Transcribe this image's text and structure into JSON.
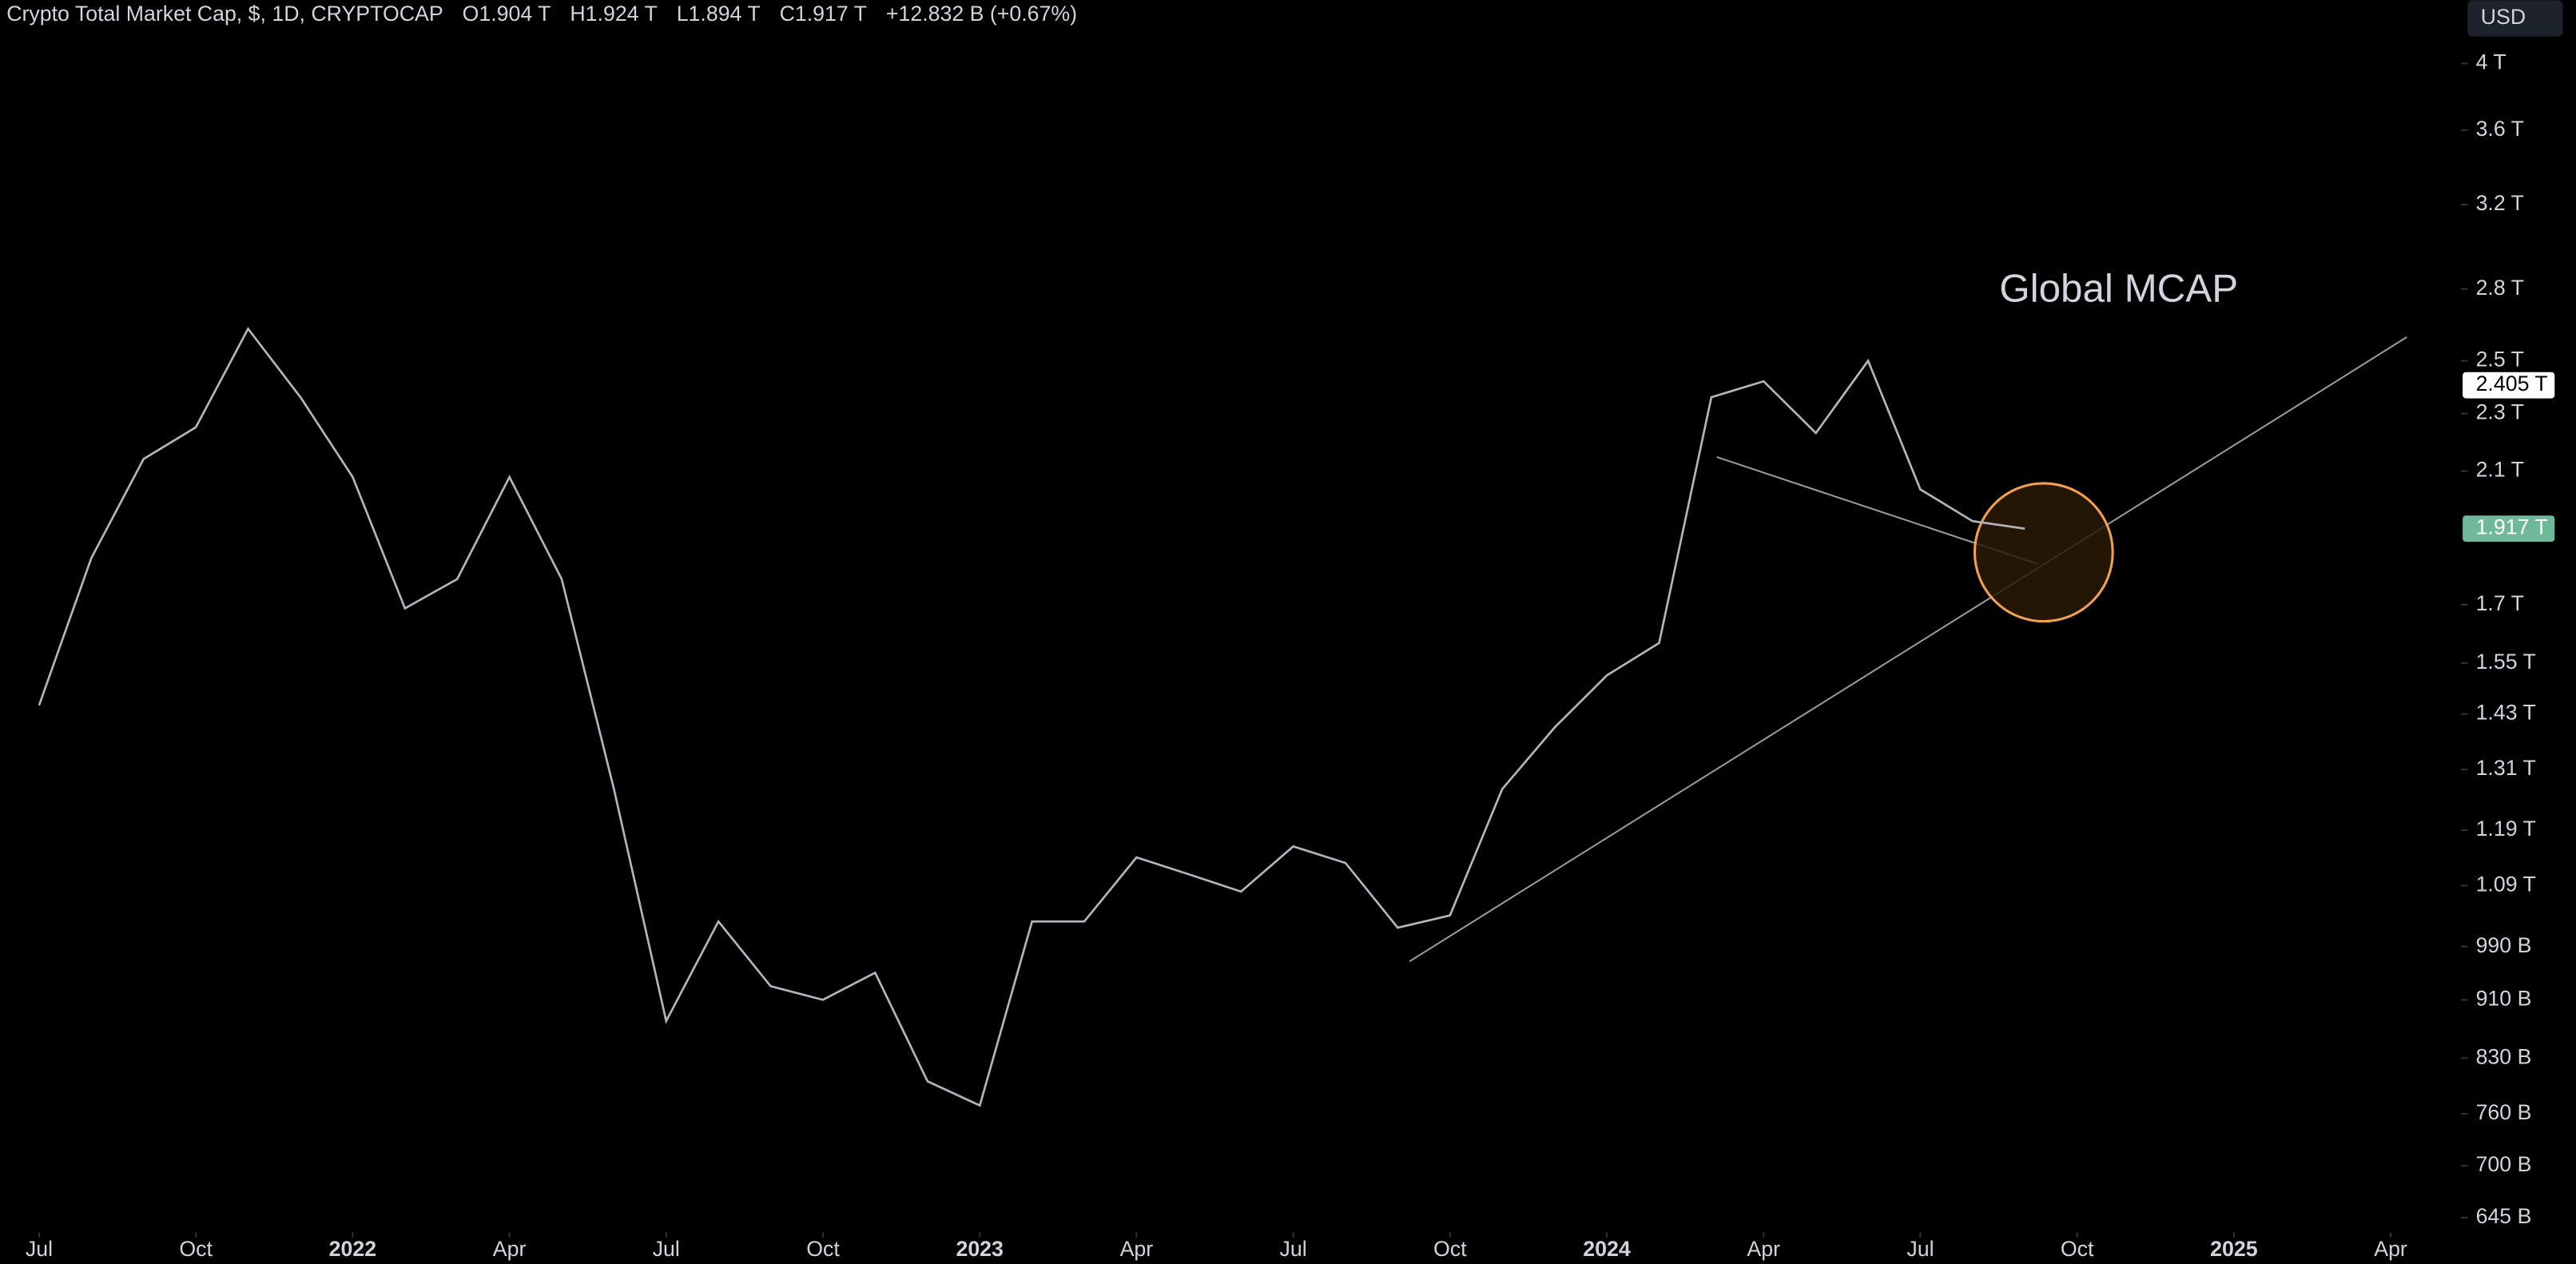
{
  "chart_data": {
    "type": "line",
    "header": {
      "symbol": "Crypto Total Market Cap, $, 1D, CRYPTOCAP",
      "open": "O1.904 T",
      "high": "H1.924 T",
      "low": "L1.894 T",
      "close": "C1.917 T",
      "change": "+12.832 B (+0.67%)"
    },
    "currency": "USD",
    "annotation": "Global MCAP",
    "log_scale": true,
    "grid": false,
    "x": [
      "2021-07",
      "2021-08",
      "2021-09",
      "2021-10",
      "2021-11",
      "2021-12",
      "2022-01",
      "2022-02",
      "2022-03",
      "2022-04",
      "2022-05",
      "2022-06",
      "2022-07",
      "2022-08",
      "2022-09",
      "2022-10",
      "2022-11",
      "2022-12",
      "2023-01",
      "2023-02",
      "2023-03",
      "2023-04",
      "2023-05",
      "2023-06",
      "2023-07",
      "2023-08",
      "2023-09",
      "2023-10",
      "2023-11",
      "2023-12",
      "2024-01",
      "2024-02",
      "2024-03",
      "2024-04",
      "2024-05",
      "2024-06",
      "2024-07",
      "2024-08",
      "2024-09"
    ],
    "series": [
      {
        "color": "#b2b5be",
        "values": [
          1.45,
          1.83,
          2.14,
          2.25,
          2.63,
          2.36,
          2.08,
          1.69,
          1.77,
          2.08,
          1.77,
          1.27,
          0.88,
          1.03,
          0.93,
          0.91,
          0.95,
          0.8,
          0.77,
          1.03,
          1.03,
          1.14,
          1.11,
          1.08,
          1.16,
          1.13,
          1.02,
          1.04,
          1.27,
          1.4,
          1.52,
          1.6,
          2.36,
          2.42,
          2.23,
          2.5,
          2.04,
          1.94,
          1.917
        ]
      }
    ],
    "xlim": [
      "2021-06",
      "2025-05"
    ],
    "xticks": [
      {
        "value": "2021-07",
        "label": "Jul"
      },
      {
        "value": "2021-10",
        "label": "Oct"
      },
      {
        "value": "2022-01",
        "label": "2022"
      },
      {
        "value": "2022-04",
        "label": "Apr"
      },
      {
        "value": "2022-07",
        "label": "Jul"
      },
      {
        "value": "2022-10",
        "label": "Oct"
      },
      {
        "value": "2023-01",
        "label": "2023"
      },
      {
        "value": "2023-04",
        "label": "Apr"
      },
      {
        "value": "2023-07",
        "label": "Jul"
      },
      {
        "value": "2023-10",
        "label": "Oct"
      },
      {
        "value": "2024-01",
        "label": "2024"
      },
      {
        "value": "2024-04",
        "label": "Apr"
      },
      {
        "value": "2024-07",
        "label": "Jul"
      },
      {
        "value": "2024-10",
        "label": "Oct"
      },
      {
        "value": "2025-01",
        "label": "2025"
      },
      {
        "value": "2025-04",
        "label": "Apr"
      }
    ],
    "ylim": [
      0.63,
      4.42
    ],
    "yticks": [
      {
        "value": 4,
        "label": "4 T"
      },
      {
        "value": 3.6,
        "label": "3.6 T"
      },
      {
        "value": 3.2,
        "label": "3.2 T"
      },
      {
        "value": 2.8,
        "label": "2.8 T"
      },
      {
        "value": 2.5,
        "label": "2.5 T"
      },
      {
        "value": 2.3,
        "label": "2.3 T"
      },
      {
        "value": 2.1,
        "label": "2.1 T"
      },
      {
        "value": 1.7,
        "label": "1.7 T"
      },
      {
        "value": 1.55,
        "label": "1.55 T"
      },
      {
        "value": 1.43,
        "label": "1.43 T"
      },
      {
        "value": 1.31,
        "label": "1.31 T"
      },
      {
        "value": 1.19,
        "label": "1.19 T"
      },
      {
        "value": 1.09,
        "label": "1.09 T"
      },
      {
        "value": 0.99,
        "label": "990 B"
      },
      {
        "value": 0.91,
        "label": "910 B"
      },
      {
        "value": 0.83,
        "label": "830 B"
      },
      {
        "value": 0.76,
        "label": "760 B"
      },
      {
        "value": 0.7,
        "label": "700 B"
      },
      {
        "value": 0.645,
        "label": "645 B"
      }
    ],
    "price_labels": [
      {
        "value": 2.405,
        "label": "2.405 T",
        "color": "#ffffff"
      },
      {
        "value": 1.917,
        "label": "1.917 T",
        "color": "#6fb89a"
      }
    ]
  }
}
